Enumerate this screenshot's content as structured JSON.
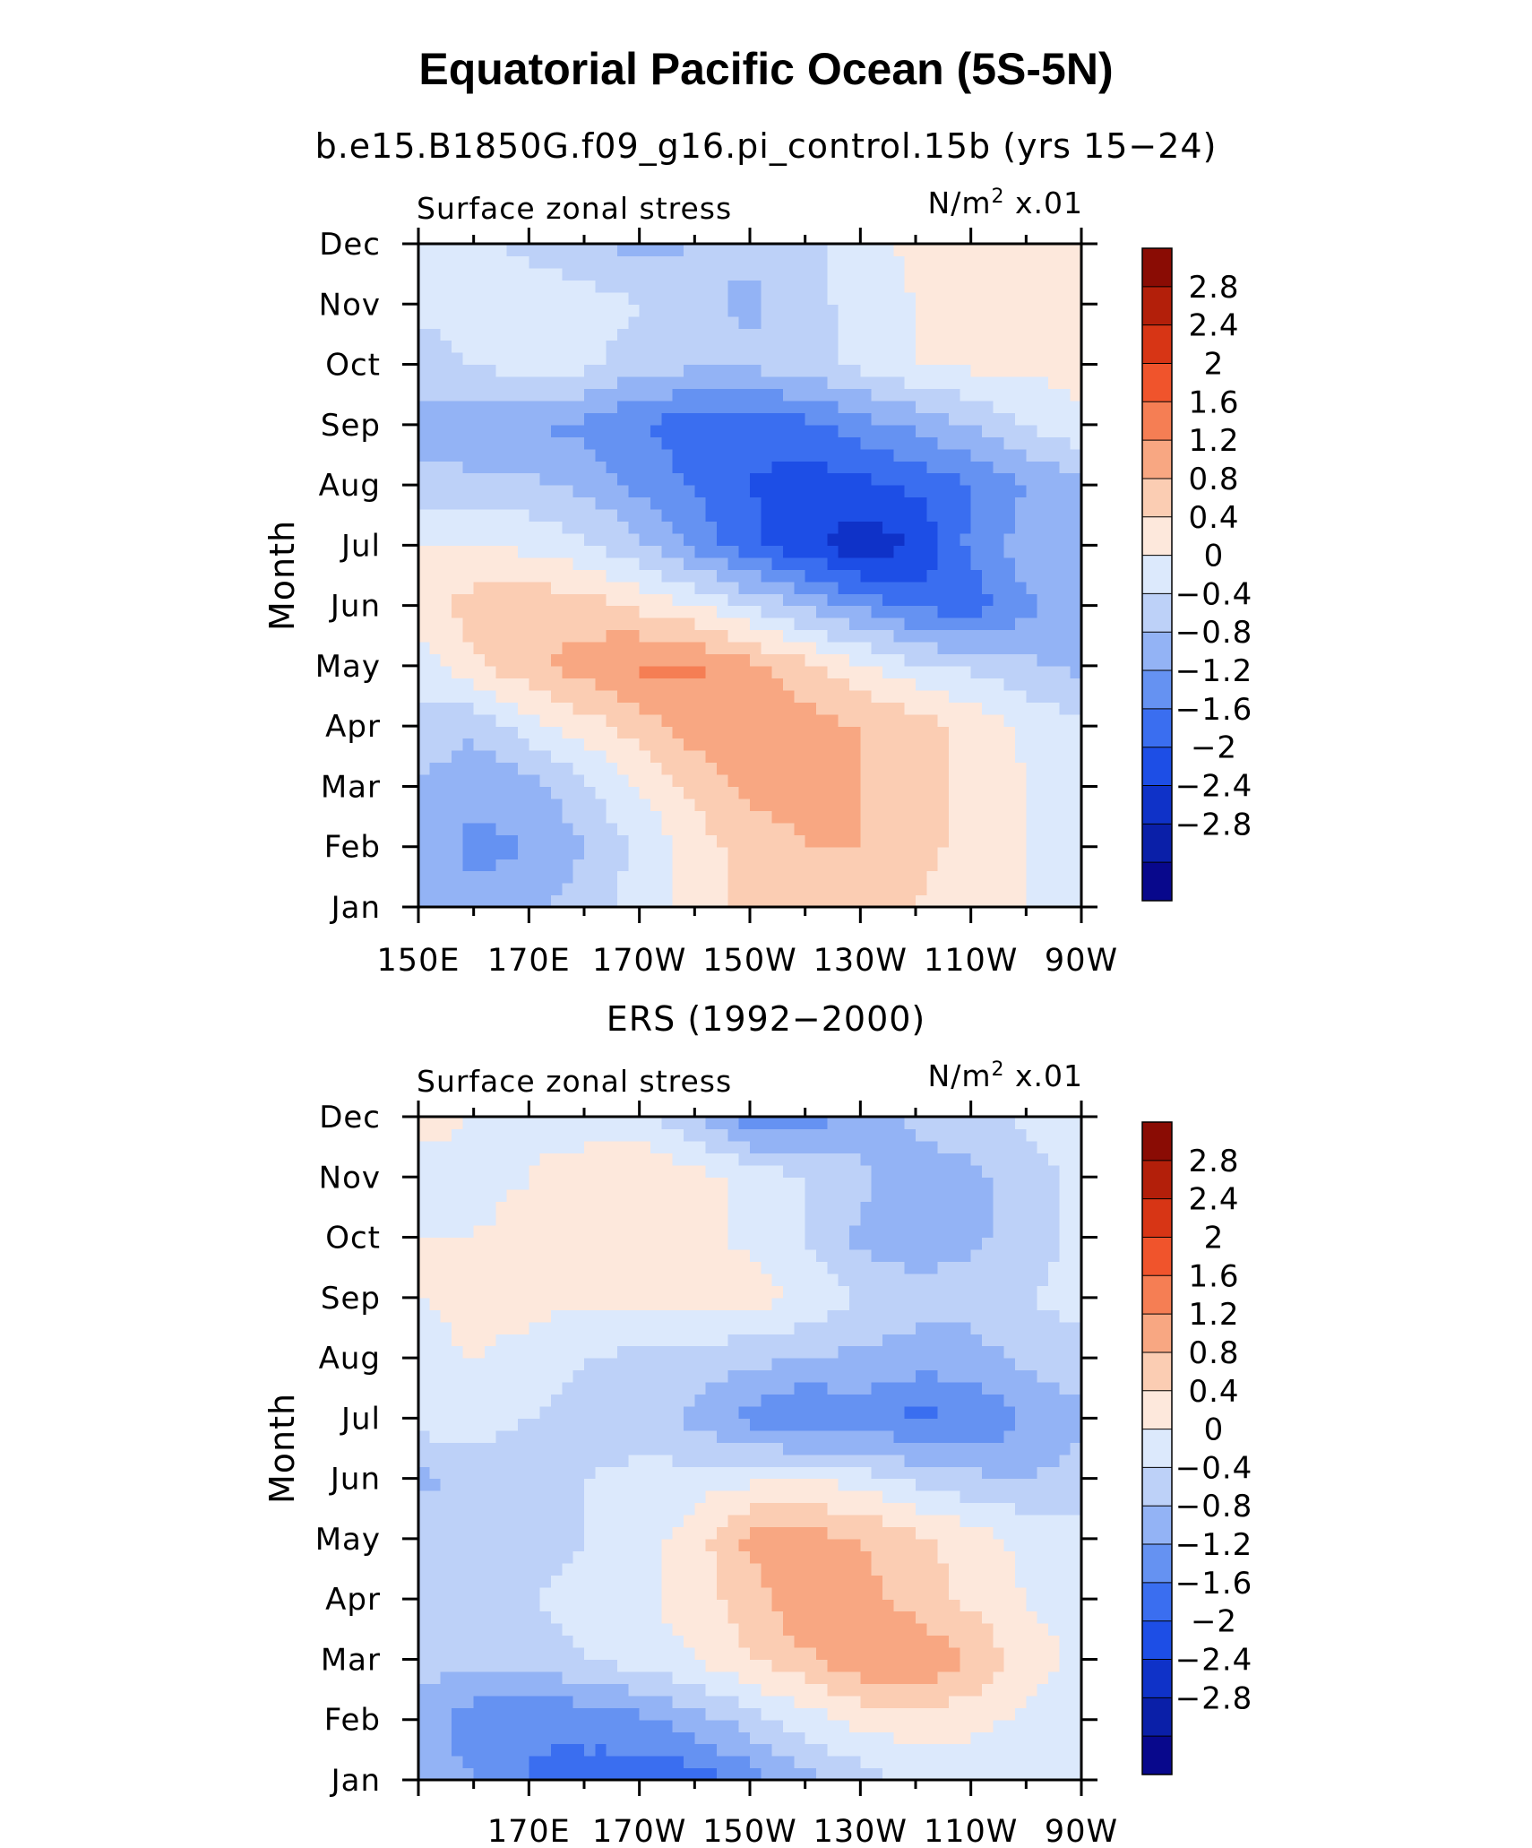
{
  "title": "Equatorial Pacific Ocean (5S-5N)",
  "colors": {
    "levels": [
      "#08088c",
      "#0a1fa8",
      "#0f32c8",
      "#1d4ee6",
      "#3a6ef0",
      "#6592f2",
      "#93b3f5",
      "#bdd1f8",
      "#dce9fc",
      "#fde8dc",
      "#fbcdb3",
      "#f8a782",
      "#f57e54",
      "#f0542c",
      "#d73515",
      "#b31f0a",
      "#8a0c04"
    ]
  },
  "panels": [
    {
      "subtitle": "b.e15.B1850G.f09_g16.pi_control.15b (yrs 15−24)",
      "left_label": "Surface zonal stress",
      "right_label": "N/m",
      "right_label_sup": "2",
      "right_label_suffix": " x.01",
      "ylabel": "Month"
    },
    {
      "subtitle": "ERS (1992−2000)",
      "left_label": "Surface zonal stress",
      "right_label": "N/m",
      "right_label_sup": "2",
      "right_label_suffix": " x.01",
      "ylabel": "Month"
    }
  ],
  "chart_data": [
    {
      "type": "heatmap",
      "subtitle": "b.e15.B1850G.f09_g16.pi_control.15b (yrs 15−24)",
      "xlabel": "",
      "ylabel": "Month",
      "units": "N/m² x.01",
      "xlim": [
        150,
        270
      ],
      "x_tick_values": [
        150,
        170,
        190,
        210,
        230,
        250,
        270
      ],
      "x_tick_labels": [
        "150E",
        "170E",
        "170W",
        "150W",
        "130W",
        "110W",
        "90W"
      ],
      "y_tick_labels": [
        "Jan",
        "Feb",
        "Mar",
        "Apr",
        "May",
        "Jun",
        "Jul",
        "Aug",
        "Sep",
        "Oct",
        "Nov",
        "Dec"
      ],
      "x": [
        150,
        160,
        170,
        180,
        190,
        200,
        210,
        220,
        230,
        240,
        250,
        260,
        270
      ],
      "y": [
        "Jan",
        "Feb",
        "Mar",
        "Apr",
        "May",
        "Jun",
        "Jul",
        "Aug",
        "Sep",
        "Oct",
        "Nov",
        "Dec"
      ],
      "z": [
        [
          -0.4,
          -0.7,
          -0.5,
          -0.2,
          0.2,
          0.6,
          0.9,
          1.0,
          1.0,
          0.8,
          0.5,
          0.4,
          0.2
        ],
        [
          -0.5,
          -0.9,
          -0.8,
          -0.4,
          0.1,
          0.6,
          1.0,
          1.2,
          1.2,
          1.0,
          0.6,
          0.4,
          0.2
        ],
        [
          -0.4,
          -0.7,
          -0.6,
          -0.1,
          0.4,
          0.9,
          1.3,
          1.3,
          1.2,
          1.0,
          0.7,
          0.4,
          0.2
        ],
        [
          -0.2,
          -0.3,
          0.2,
          0.6,
          1.0,
          1.4,
          1.6,
          1.4,
          1.2,
          1.0,
          0.7,
          0.3,
          0.1
        ],
        [
          0.2,
          0.7,
          1.1,
          1.4,
          1.7,
          1.7,
          1.3,
          0.9,
          0.5,
          0.1,
          -0.1,
          -0.3,
          -0.5
        ],
        [
          0.6,
          1.0,
          1.1,
          1.0,
          0.7,
          0.4,
          0.0,
          -0.5,
          -0.9,
          -1.3,
          -1.4,
          -0.9,
          -0.6
        ],
        [
          0.4,
          0.4,
          0.3,
          0.1,
          -0.3,
          -0.9,
          -1.5,
          -1.9,
          -2.3,
          -2.0,
          -1.1,
          -0.6,
          -0.4
        ],
        [
          -0.2,
          -0.3,
          -0.3,
          -0.5,
          -0.9,
          -1.2,
          -1.6,
          -1.8,
          -1.7,
          -1.5,
          -1.2,
          -0.8,
          -0.5
        ],
        [
          -0.6,
          -0.7,
          -0.8,
          -0.9,
          -1.2,
          -1.5,
          -1.5,
          -1.3,
          -1.0,
          -0.7,
          -0.4,
          0.0,
          0.3
        ],
        [
          -0.2,
          0.0,
          0.2,
          0.1,
          -0.2,
          -0.3,
          -0.3,
          -0.2,
          0.1,
          0.4,
          0.5,
          0.5,
          0.6
        ],
        [
          0.1,
          0.2,
          0.3,
          0.2,
          0.0,
          -0.3,
          -0.5,
          -0.2,
          0.2,
          0.4,
          0.5,
          0.5,
          0.5
        ],
        [
          0.2,
          0.1,
          -0.1,
          -0.4,
          -0.5,
          -0.4,
          -0.3,
          -0.1,
          0.2,
          0.5,
          0.6,
          0.6,
          0.6
        ]
      ],
      "levels": [
        -2.8,
        -2.4,
        -2,
        -1.6,
        -1.2,
        -0.8,
        -0.4,
        0,
        0.4,
        0.8,
        1.2,
        1.6,
        2,
        2.4,
        2.8
      ],
      "colorbar_labels": [
        "2.8",
        "2.4",
        "2",
        "1.6",
        "1.2",
        "0.8",
        "0.4",
        "0",
        "−0.4",
        "−0.8",
        "−1.2",
        "−1.6",
        "−2",
        "−2.4",
        "−2.8"
      ]
    },
    {
      "type": "heatmap",
      "subtitle": "ERS (1992−2000)",
      "xlabel": "",
      "ylabel": "Month",
      "units": "N/m² x.01",
      "xlim": [
        150,
        270
      ],
      "x_tick_values": [
        170,
        190,
        210,
        230,
        250,
        270
      ],
      "x_tick_labels": [
        "170E",
        "170W",
        "150W",
        "130W",
        "110W",
        "90W"
      ],
      "y_tick_labels": [
        "Jan",
        "Feb",
        "Mar",
        "Apr",
        "May",
        "Jun",
        "Jul",
        "Aug",
        "Sep",
        "Oct",
        "Nov",
        "Dec"
      ],
      "x": [
        150,
        160,
        170,
        180,
        190,
        200,
        210,
        220,
        230,
        240,
        250,
        260,
        270
      ],
      "y": [
        "Jan",
        "Feb",
        "Mar",
        "Apr",
        "May",
        "Jun",
        "Jul",
        "Aug",
        "Sep",
        "Oct",
        "Nov",
        "Dec"
      ],
      "z": [
        [
          -0.6,
          -0.8,
          -1.2,
          -1.3,
          -1.5,
          -1.4,
          -1.0,
          -0.5,
          -0.2,
          0.1,
          0.2,
          0.2,
          0.1
        ],
        [
          -0.6,
          -1.0,
          -1.2,
          -1.1,
          -0.9,
          -0.6,
          -0.2,
          0.2,
          0.5,
          0.6,
          0.5,
          0.3,
          0.2
        ],
        [
          -0.2,
          -0.3,
          -0.2,
          0.0,
          0.2,
          0.4,
          0.8,
          1.1,
          1.5,
          1.6,
          1.2,
          0.6,
          0.3
        ],
        [
          -0.1,
          -0.1,
          0.0,
          0.1,
          0.3,
          0.6,
          1.0,
          1.6,
          1.4,
          1.0,
          0.7,
          0.4,
          0.2
        ],
        [
          -0.1,
          -0.2,
          -0.2,
          0.0,
          0.2,
          0.6,
          1.3,
          1.4,
          1.2,
          0.9,
          0.6,
          0.3,
          0.1
        ],
        [
          -0.5,
          -0.3,
          -0.2,
          0.0,
          0.1,
          0.2,
          0.3,
          0.4,
          0.2,
          -0.1,
          -0.3,
          -0.4,
          -0.2
        ],
        [
          0.2,
          0.2,
          0.0,
          -0.2,
          -0.2,
          -0.5,
          -0.9,
          -1.3,
          -1.0,
          -1.3,
          -1.2,
          -0.8,
          -0.5
        ],
        [
          0.3,
          0.4,
          0.3,
          0.0,
          -0.1,
          -0.2,
          -0.3,
          -0.4,
          -0.5,
          -0.6,
          -0.6,
          -0.3,
          -0.1
        ],
        [
          0.4,
          0.5,
          0.5,
          0.5,
          0.5,
          0.6,
          0.6,
          0.3,
          0.0,
          -0.2,
          -0.2,
          0.0,
          0.1
        ],
        [
          0.4,
          0.4,
          0.5,
          0.6,
          0.6,
          0.5,
          0.3,
          0.0,
          -0.5,
          -0.7,
          -0.5,
          -0.2,
          0.1
        ],
        [
          0.3,
          0.3,
          0.4,
          0.6,
          0.8,
          0.6,
          0.3,
          0.0,
          -0.3,
          -0.6,
          -0.5,
          -0.2,
          0.1
        ],
        [
          0.5,
          0.4,
          0.3,
          0.2,
          0.1,
          -0.4,
          -1.1,
          -1.0,
          -0.6,
          -0.3,
          -0.2,
          0.1,
          0.2
        ]
      ],
      "levels": [
        -2.8,
        -2.4,
        -2,
        -1.6,
        -1.2,
        -0.8,
        -0.4,
        0,
        0.4,
        0.8,
        1.2,
        1.6,
        2,
        2.4,
        2.8
      ],
      "colorbar_labels": [
        "2.8",
        "2.4",
        "2",
        "1.6",
        "1.2",
        "0.8",
        "0.4",
        "0",
        "−0.4",
        "−0.8",
        "−1.2",
        "−1.6",
        "−2",
        "−2.4",
        "−2.8"
      ]
    }
  ]
}
